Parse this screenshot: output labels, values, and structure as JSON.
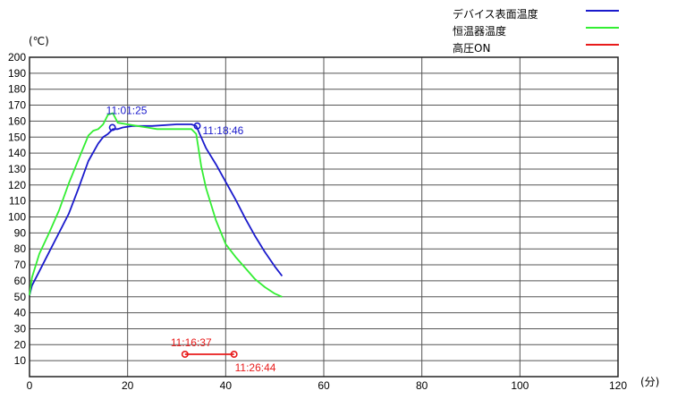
{
  "chart_data": {
    "type": "line",
    "title": "",
    "ylabel": "(℃)",
    "xlabel": "(分)",
    "xlim": [
      0,
      120
    ],
    "ylim": [
      0,
      200
    ],
    "xticks": [
      "0",
      "20",
      "40",
      "60",
      "80",
      "100",
      "120"
    ],
    "yticks": [
      "10",
      "20",
      "30",
      "40",
      "50",
      "60",
      "70",
      "80",
      "90",
      "100",
      "110",
      "120",
      "130",
      "140",
      "150",
      "160",
      "170",
      "180",
      "190",
      "200"
    ],
    "grid": true,
    "legend_position": "top-right",
    "series": [
      {
        "name": "デバイス表面温度",
        "color": "#1a1acc",
        "points": [
          [
            0,
            51
          ],
          [
            0.5,
            57
          ],
          [
            2,
            66
          ],
          [
            4,
            78
          ],
          [
            6,
            90
          ],
          [
            8,
            102
          ],
          [
            10,
            118
          ],
          [
            12,
            135
          ],
          [
            14,
            146
          ],
          [
            15,
            150
          ],
          [
            16,
            152
          ],
          [
            17,
            155
          ],
          [
            18,
            155
          ],
          [
            19,
            156
          ],
          [
            21,
            157
          ],
          [
            25,
            157
          ],
          [
            30,
            158
          ],
          [
            33,
            158
          ],
          [
            34,
            157
          ],
          [
            35,
            150
          ],
          [
            36,
            143
          ],
          [
            38,
            133
          ],
          [
            40,
            122
          ],
          [
            42,
            111
          ],
          [
            44,
            99
          ],
          [
            46,
            88
          ],
          [
            48,
            78
          ],
          [
            50,
            69
          ],
          [
            51.5,
            63
          ]
        ]
      },
      {
        "name": "恒温器温度",
        "color": "#33ee33",
        "points": [
          [
            0,
            51
          ],
          [
            0.5,
            62
          ],
          [
            2,
            77
          ],
          [
            4,
            90
          ],
          [
            6,
            104
          ],
          [
            8,
            121
          ],
          [
            10,
            136
          ],
          [
            12,
            151
          ],
          [
            13,
            154
          ],
          [
            14,
            155
          ],
          [
            15,
            158
          ],
          [
            16,
            164
          ],
          [
            17,
            165
          ],
          [
            18,
            159
          ],
          [
            20,
            158
          ],
          [
            22,
            157
          ],
          [
            24,
            156
          ],
          [
            26,
            155
          ],
          [
            30,
            155
          ],
          [
            33,
            155
          ],
          [
            34,
            152
          ],
          [
            35,
            132
          ],
          [
            36,
            118
          ],
          [
            38,
            98
          ],
          [
            40,
            83
          ],
          [
            42,
            75
          ],
          [
            44,
            68
          ],
          [
            46,
            61
          ],
          [
            48,
            56
          ],
          [
            50,
            52
          ],
          [
            51.5,
            50
          ]
        ]
      },
      {
        "name": "高圧ON",
        "color": "#e81b1b",
        "points": [
          [
            31.7,
            14
          ],
          [
            41.7,
            14
          ]
        ]
      }
    ],
    "annotations": [
      {
        "text": "11:01:25",
        "x": 16.9,
        "y": 156,
        "color": "#1a1acc"
      },
      {
        "text": "11:18:46",
        "x": 34.2,
        "y": 157,
        "color": "#1a1acc"
      },
      {
        "text": "11:16:37",
        "x": 31.7,
        "y": 14,
        "color": "#e81b1b"
      },
      {
        "text": "11:26:44",
        "x": 41.7,
        "y": 14,
        "color": "#e81b1b"
      }
    ]
  }
}
